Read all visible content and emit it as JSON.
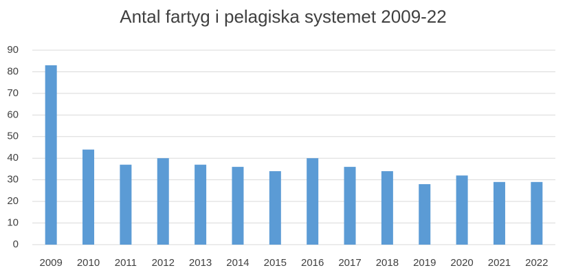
{
  "chart_data": {
    "type": "bar",
    "title": "Antal fartyg i pelagiska systemet 2009-22",
    "categories": [
      "2009",
      "2010",
      "2011",
      "2012",
      "2013",
      "2014",
      "2015",
      "2016",
      "2017",
      "2018",
      "2019",
      "2020",
      "2021",
      "2022"
    ],
    "values": [
      83,
      44,
      37,
      40,
      37,
      36,
      34,
      40,
      36,
      34,
      28,
      32,
      29,
      29
    ],
    "color": "#5b9bd5",
    "ylim": [
      0,
      90
    ],
    "yticks": [
      0,
      10,
      20,
      30,
      40,
      50,
      60,
      70,
      80,
      90
    ],
    "grid": true
  }
}
